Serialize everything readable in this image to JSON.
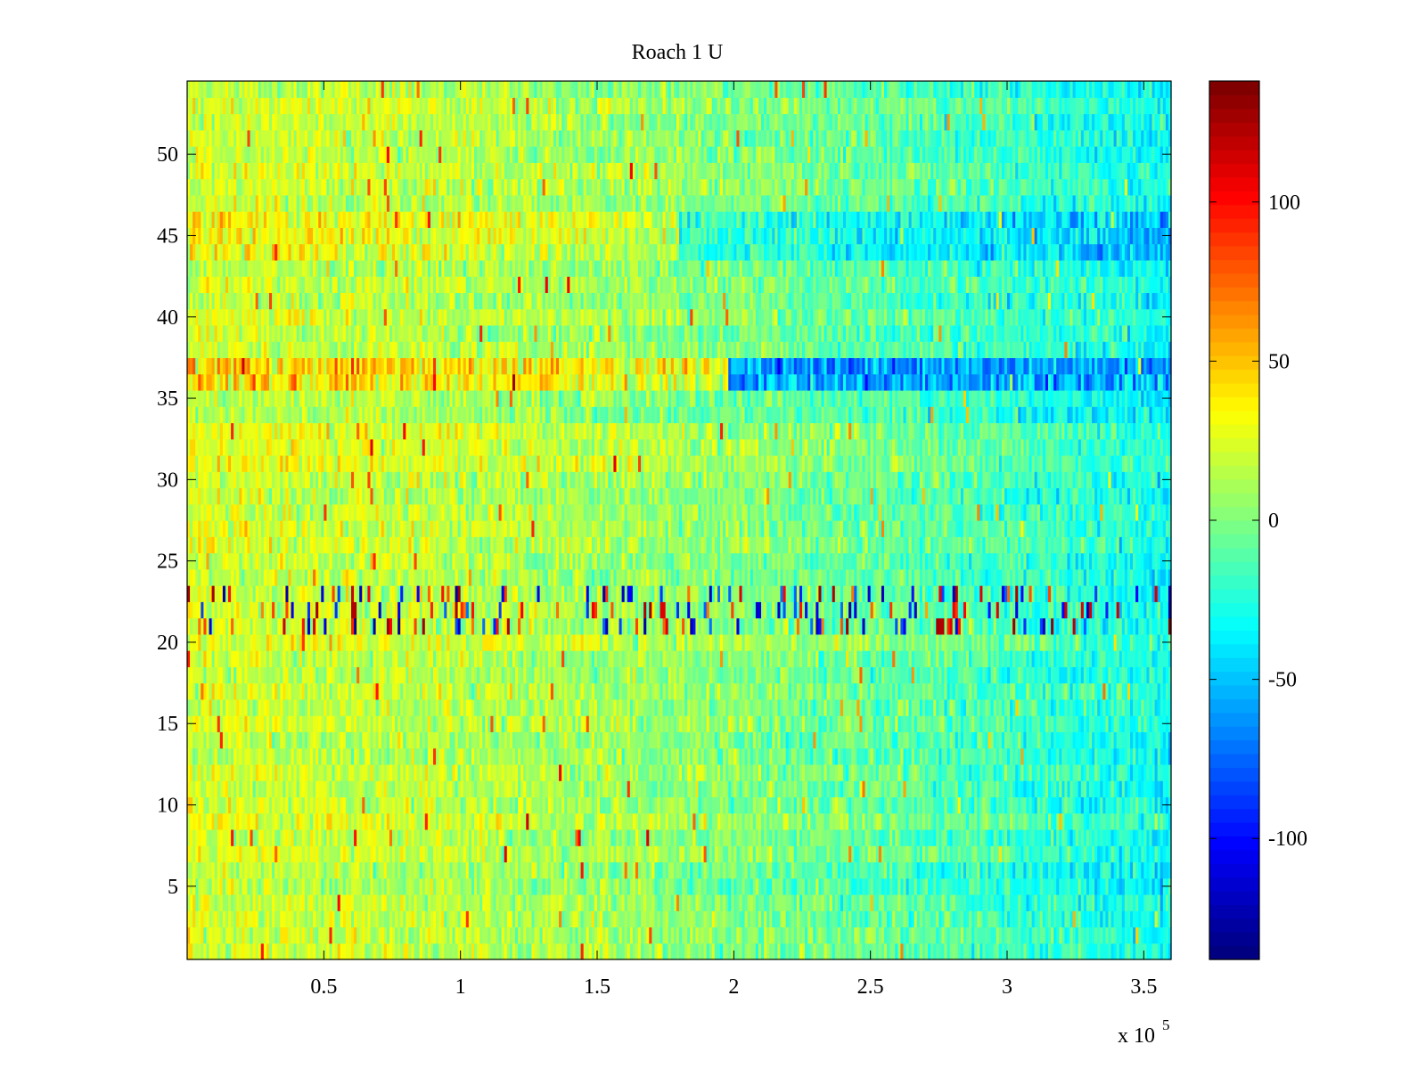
{
  "chart_data": {
    "type": "heatmap",
    "title": "Roach 1 U",
    "xlabel": "",
    "ylabel": "",
    "x_multiplier_label": {
      "base": "x 10",
      "exponent": "5"
    },
    "xlim": [
      0,
      3.6
    ],
    "ylim": [
      0.5,
      54.5
    ],
    "rows": 54,
    "columns": 360,
    "x_ticks": [
      0.5,
      1,
      1.5,
      2,
      2.5,
      3,
      3.5
    ],
    "x_tick_labels": [
      "0.5",
      "1",
      "1.5",
      "2",
      "2.5",
      "3",
      "3.5"
    ],
    "y_ticks": [
      5,
      10,
      15,
      20,
      25,
      30,
      35,
      40,
      45,
      50
    ],
    "y_tick_labels": [
      "5",
      "10",
      "15",
      "20",
      "25",
      "30",
      "35",
      "40",
      "45",
      "50"
    ],
    "colorbar": {
      "colormap": "jet",
      "levels": 64,
      "range": [
        -138,
        138
      ],
      "ticks": [
        -100,
        -50,
        0,
        50,
        100
      ],
      "tick_labels": [
        "-100",
        "-50",
        "0",
        "50",
        "100"
      ]
    },
    "value_trend": {
      "left_mean": 22,
      "right_mean": -30,
      "note_rows": [
        {
          "rows": [
            21,
            23
          ],
          "description": "strong positive/negative spikes across full width"
        },
        {
          "rows": [
            36,
            37
          ],
          "description": "warm streak left half, strongly negative right half"
        },
        {
          "rows": [
            44,
            46
          ],
          "description": "warm left, negative right"
        }
      ]
    }
  }
}
